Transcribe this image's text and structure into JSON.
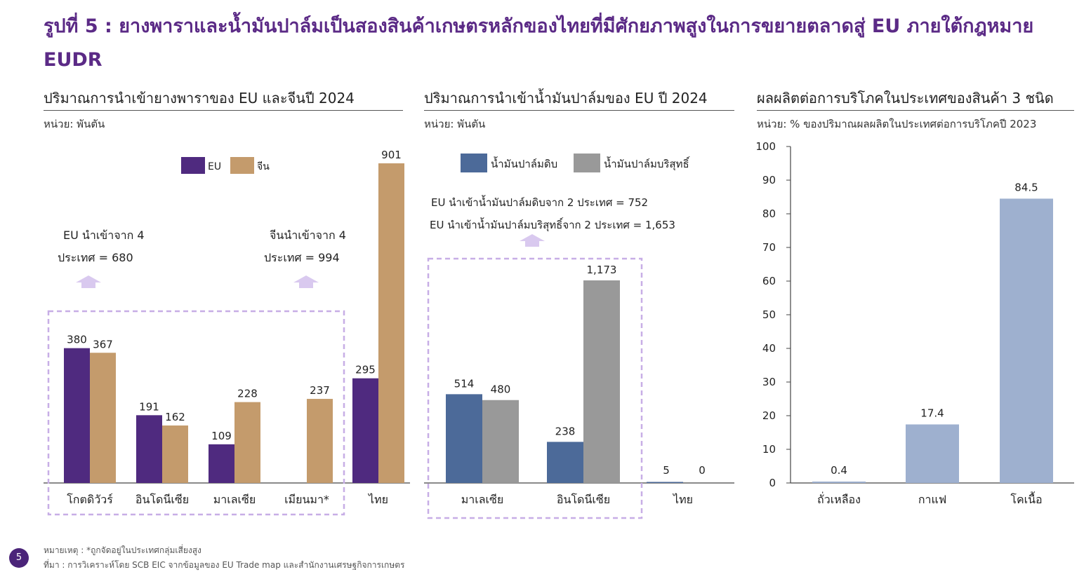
{
  "page": {
    "title": "รูปที่ 5 : ยางพาราและน้ำมันปาล์มเป็นสองสินค้าเกษตรหลักของไทยที่มีศักยภาพสูงในการขยายตลาดสู่ EU ภายใต้กฎหมาย EUDR",
    "page_number": "5",
    "note": "หมายเหตุ : *ถูกจัดอยู่ในประเทศกลุ่มเสี่ยงสูง",
    "source": "ที่มา : การวิเคราะห์โดย SCB EIC จากข้อมูลของ EU Trade map และสำนักงานเศรษฐกิจการเกษตร",
    "colors": {
      "title": "#5b2a86",
      "eu": "#4f2a7f",
      "china": "#c49b6c",
      "crude": "#4c6a99",
      "refined": "#999999",
      "ratio": "#9eb0cf",
      "dash": "#c7aee6",
      "arrow": "#d9c9ef"
    }
  },
  "chart_data": [
    {
      "type": "bar",
      "title": "ปริมาณการนำเข้ายางพาราของ EU และจีนปี 2024",
      "unit": "หน่วย: พันตัน",
      "categories": [
        "โกตดิวัวร์",
        "อินโดนีเซีย",
        "มาเลเซีย",
        "เมียนมา*",
        "ไทย"
      ],
      "series": [
        {
          "name": "EU",
          "color": "#4f2a7f",
          "values": [
            380,
            191,
            109,
            null,
            295
          ]
        },
        {
          "name": "จีน",
          "color": "#c49b6c",
          "values": [
            367,
            162,
            228,
            237,
            901
          ]
        }
      ],
      "annotations": [
        {
          "lines": [
            "EU นำเข้าจาก 4",
            "ประเทศ  = 680"
          ]
        },
        {
          "lines": [
            "จีนนำเข้าจาก 4",
            "ประเทศ = 994"
          ]
        }
      ],
      "ylim": [
        0,
        1000
      ],
      "legend": "top-center"
    },
    {
      "type": "bar",
      "title": "ปริมาณการนำเข้าน้ำมันปาล์มของ EU  ปี 2024",
      "unit": "หน่วย: พันตัน",
      "categories": [
        "มาเลเซีย",
        "อินโดนีเซีย",
        "ไทย"
      ],
      "series": [
        {
          "name": "น้ำมันปาล์มดิบ",
          "color": "#4c6a99",
          "values": [
            514,
            238,
            5
          ]
        },
        {
          "name": "น้ำมันปาล์มบริสุทธิ์",
          "color": "#999999",
          "values": [
            480,
            1173,
            0
          ]
        }
      ],
      "data_labels": [
        [
          "514",
          "238",
          "5"
        ],
        [
          "480",
          "1,173",
          "0"
        ]
      ],
      "annotations": [
        {
          "lines": [
            "EU นำเข้าน้ำมันปาล์มดิบจาก 2 ประเทศ  = 752",
            "EU นำเข้าน้ำมันปาล์มบริสุทธิ์จาก 2 ประเทศ  = 1,653"
          ]
        }
      ],
      "ylim": [
        0,
        1300
      ],
      "legend": "top-center"
    },
    {
      "type": "bar",
      "title": "ผลผลิตต่อการบริโภคในประเทศของสินค้า 3 ชนิด",
      "unit": "หน่วย: % ของปริมาณผลผลิตในประเทศต่อการบริโภคปี 2023",
      "categories": [
        "ถั่วเหลือง",
        "กาแฟ",
        "โคเนื้อ"
      ],
      "values": [
        0.4,
        17.4,
        84.5
      ],
      "yticks": [
        0,
        10,
        20,
        30,
        40,
        50,
        60,
        70,
        80,
        90,
        100
      ],
      "ylim": [
        0,
        100
      ],
      "grid": false
    }
  ]
}
